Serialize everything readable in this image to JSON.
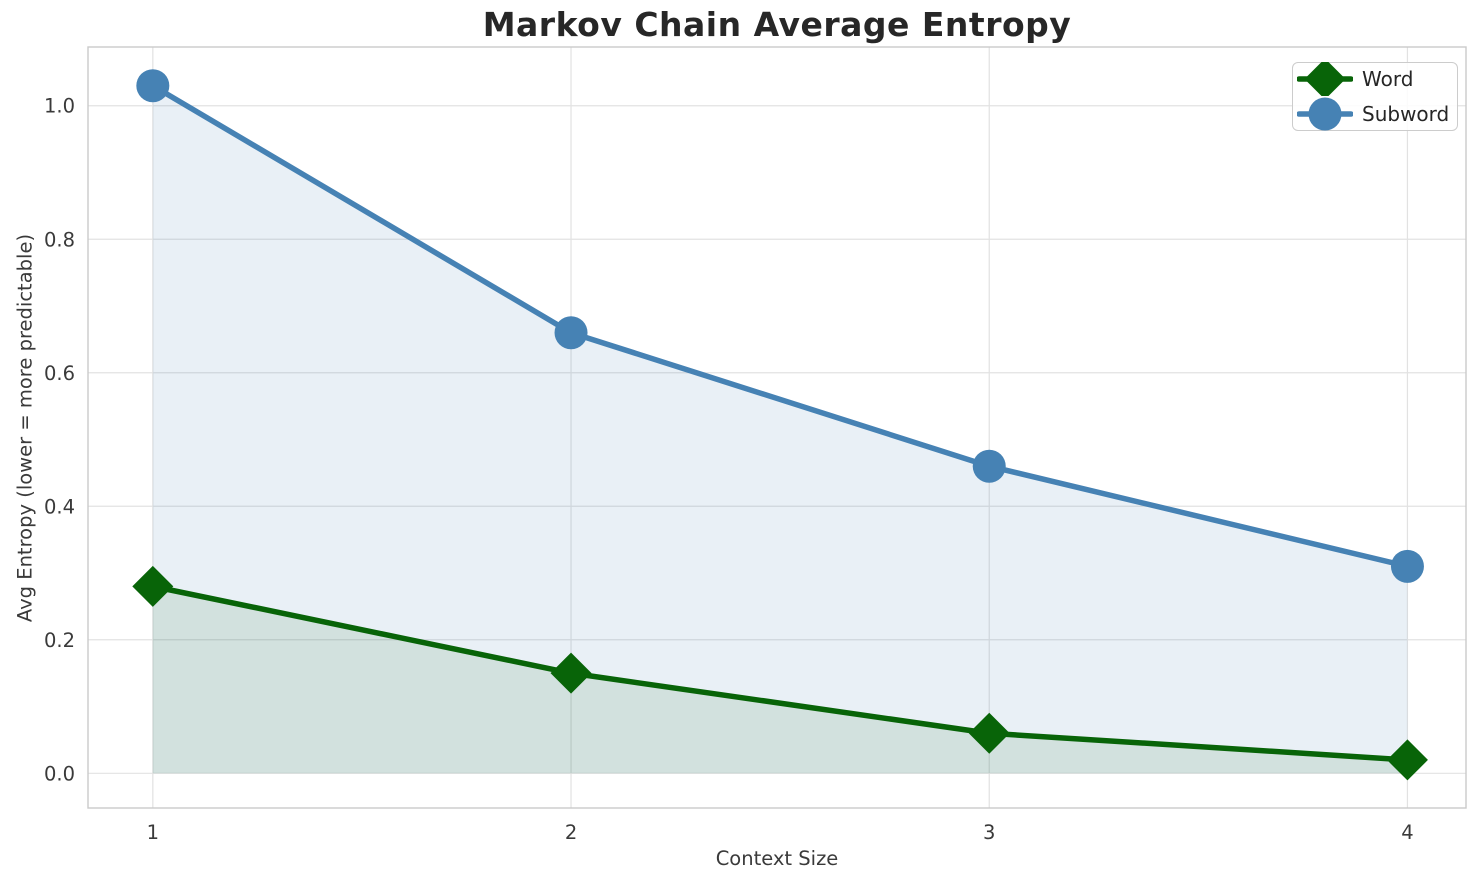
{
  "chart_data": {
    "type": "line",
    "title": "Markov Chain Average Entropy",
    "xlabel": "Context Size",
    "ylabel": "Avg Entropy (lower = more predictable)",
    "x": [
      1,
      2,
      3,
      4
    ],
    "xticks": [
      1,
      2,
      3,
      4
    ],
    "xtick_labels": [
      "1",
      "2",
      "3",
      "4"
    ],
    "yticks": [
      0.0,
      0.2,
      0.4,
      0.6,
      0.8,
      1.0
    ],
    "ytick_labels": [
      "0.0",
      "0.2",
      "0.4",
      "0.6",
      "0.8",
      "1.0"
    ],
    "xlim": [
      0.845,
      4.14
    ],
    "ylim": [
      -0.052,
      1.088
    ],
    "grid": true,
    "legend": {
      "position": "upper right",
      "entries": [
        "Word",
        "Subword"
      ]
    },
    "series": [
      {
        "name": "Word",
        "marker": "diamond",
        "color": "#086408",
        "fill_to_zero": true,
        "fill_opacity": 0.1,
        "values": [
          0.28,
          0.15,
          0.06,
          0.02
        ]
      },
      {
        "name": "Subword",
        "marker": "circle",
        "color": "#4682b4",
        "fill_to_zero": true,
        "fill_opacity": 0.12,
        "values": [
          1.03,
          0.66,
          0.46,
          0.31
        ]
      }
    ]
  },
  "style_colors": {
    "grid": "#e2e2e2",
    "spine": "#cacaca",
    "tick_text": "#3a3a3a",
    "title_text": "#272727",
    "background": "#ffffff"
  }
}
